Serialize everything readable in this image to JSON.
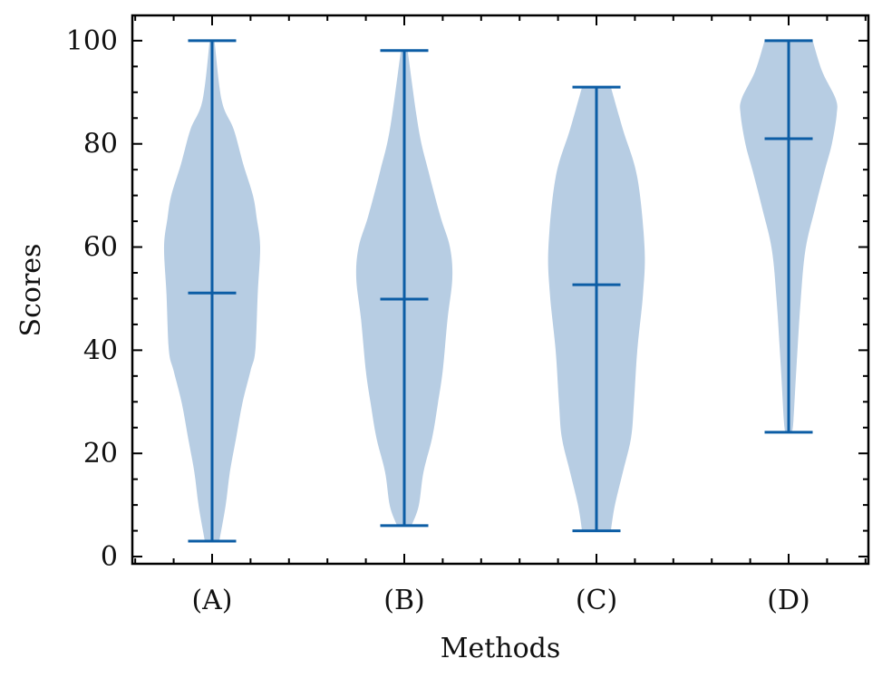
{
  "chart_data": {
    "type": "violin",
    "title": "",
    "xlabel": "Methods",
    "ylabel": "Scores",
    "categories": [
      "(A)",
      "(B)",
      "(C)",
      "(D)"
    ],
    "xlim": [
      0.585,
      4.415
    ],
    "ylim": [
      -1.4,
      104.9
    ],
    "yticks": [
      0,
      20,
      40,
      60,
      80,
      100
    ],
    "ytick_labels": [
      "0",
      "20",
      "40",
      "60",
      "80",
      "100"
    ],
    "grid": false,
    "colors": {
      "fill": "#b7cde3",
      "line": "#0c5da5",
      "axis": "#000000"
    },
    "violins": [
      {
        "category": "(A)",
        "min": 3.0,
        "max": 100.0,
        "center": 51.1,
        "density": [
          [
            3.0,
            0.15
          ],
          [
            9.8,
            0.28
          ],
          [
            16.4,
            0.37
          ],
          [
            23,
            0.5
          ],
          [
            29.7,
            0.63
          ],
          [
            36,
            0.8
          ],
          [
            40,
            0.9
          ],
          [
            51,
            0.95
          ],
          [
            60,
            1.0
          ],
          [
            65.5,
            0.93
          ],
          [
            70,
            0.85
          ],
          [
            76,
            0.65
          ],
          [
            82.8,
            0.45
          ],
          [
            88.4,
            0.2
          ],
          [
            100,
            0.05
          ]
        ]
      },
      {
        "category": "(B)",
        "min": 6.0,
        "max": 98.1,
        "center": 49.9,
        "density": [
          [
            6.0,
            0.15
          ],
          [
            9.8,
            0.3
          ],
          [
            16.4,
            0.4
          ],
          [
            23,
            0.58
          ],
          [
            29.7,
            0.7
          ],
          [
            36,
            0.8
          ],
          [
            46,
            0.9
          ],
          [
            54,
            1.0
          ],
          [
            60,
            0.95
          ],
          [
            66,
            0.75
          ],
          [
            74.8,
            0.5
          ],
          [
            82.8,
            0.3
          ],
          [
            98.1,
            0.07
          ]
        ]
      },
      {
        "category": "(C)",
        "min": 5.0,
        "max": 91.0,
        "center": 52.7,
        "density": [
          [
            5.0,
            0.3
          ],
          [
            9.8,
            0.38
          ],
          [
            16.4,
            0.55
          ],
          [
            23,
            0.72
          ],
          [
            29.7,
            0.78
          ],
          [
            40,
            0.85
          ],
          [
            51,
            0.97
          ],
          [
            60,
            1.0
          ],
          [
            73.5,
            0.85
          ],
          [
            82.8,
            0.55
          ],
          [
            91.0,
            0.3
          ]
        ]
      },
      {
        "category": "(D)",
        "min": 24.1,
        "max": 100.0,
        "center": 81.0,
        "density": [
          [
            24.1,
            0.07
          ],
          [
            26.4,
            0.1
          ],
          [
            36.3,
            0.16
          ],
          [
            49.6,
            0.25
          ],
          [
            59.5,
            0.35
          ],
          [
            67.5,
            0.55
          ],
          [
            74.8,
            0.75
          ],
          [
            80,
            0.9
          ],
          [
            85.7,
            1.0
          ],
          [
            88.7,
            0.98
          ],
          [
            94,
            0.7
          ],
          [
            100,
            0.5
          ]
        ]
      }
    ]
  }
}
